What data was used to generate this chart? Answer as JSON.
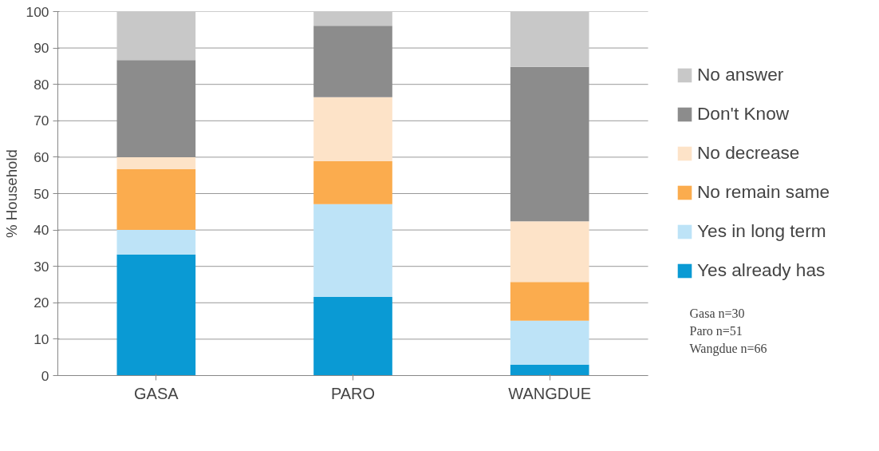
{
  "chart_data": {
    "type": "bar",
    "stacked": true,
    "ylabel": "% Household",
    "categories": [
      "GASA",
      "PARO",
      "WANGDUE"
    ],
    "series": [
      {
        "name": "Yes already has",
        "color": "#0a9ad4",
        "values": [
          33.3,
          21.6,
          3.0
        ]
      },
      {
        "name": "Yes in long term",
        "color": "#bde3f7",
        "values": [
          6.7,
          25.5,
          12.1
        ]
      },
      {
        "name": "No remain same",
        "color": "#fbac4e",
        "values": [
          16.7,
          11.8,
          10.6
        ]
      },
      {
        "name": "No decrease",
        "color": "#fde3c8",
        "values": [
          3.3,
          17.6,
          16.7
        ]
      },
      {
        "name": "Don't Know",
        "color": "#8c8c8c",
        "values": [
          26.7,
          19.6,
          42.4
        ]
      },
      {
        "name": "No answer",
        "color": "#c8c8c8",
        "values": [
          13.3,
          3.9,
          15.2
        ]
      }
    ],
    "ylim": [
      0,
      100
    ],
    "yticks": [
      0,
      10,
      20,
      30,
      40,
      50,
      60,
      70,
      80,
      90,
      100
    ],
    "grid": "y",
    "legend": "right",
    "annotations": [
      "Gasa n=30",
      "Paro n=51",
      "Wangdue n=66"
    ]
  }
}
